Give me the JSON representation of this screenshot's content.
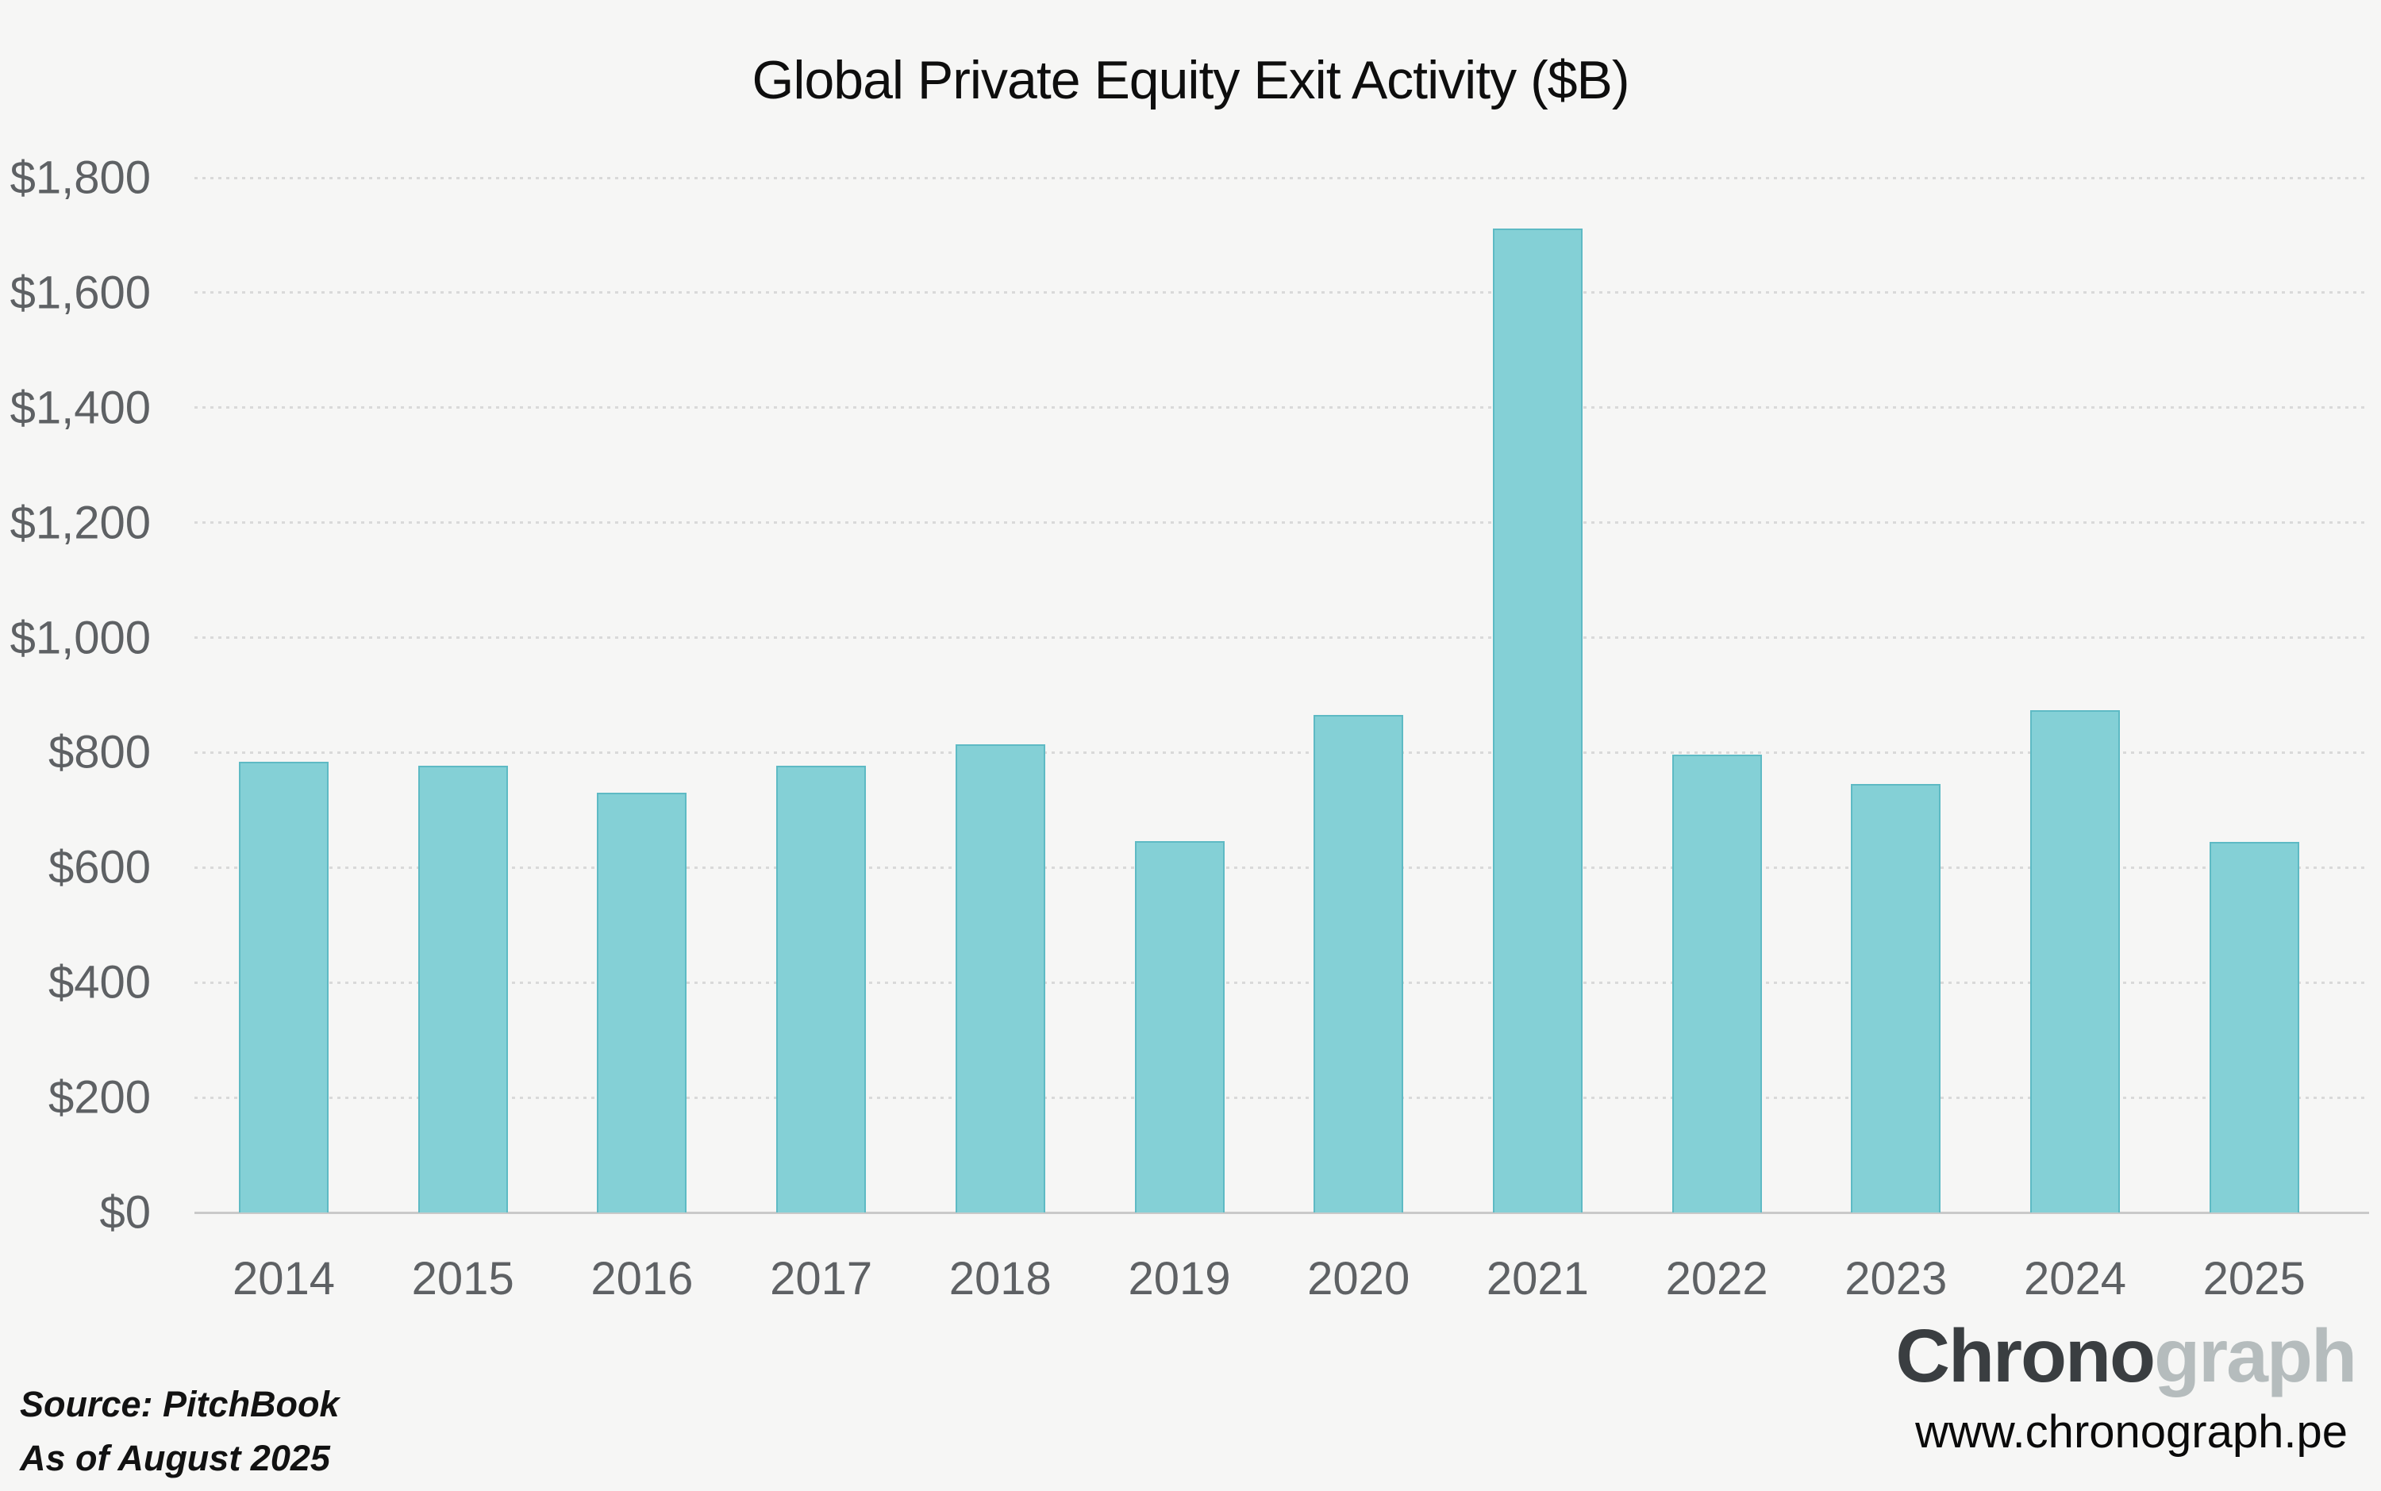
{
  "chart_data": {
    "type": "bar",
    "title": "Global Private Equity Exit Activity ($B)",
    "categories": [
      "2014",
      "2015",
      "2016",
      "2017",
      "2018",
      "2019",
      "2020",
      "2021",
      "2022",
      "2023",
      "2024",
      "2025"
    ],
    "values": [
      784,
      777,
      730,
      777,
      814,
      646,
      866,
      1712,
      797,
      746,
      874,
      645
    ],
    "xlabel": "",
    "ylabel": "",
    "ylim": [
      0,
      1800
    ],
    "ytick_step": 200,
    "ytick_labels": [
      "$0",
      "$200",
      "$400",
      "$600",
      "$800",
      "$1,000",
      "$1,200",
      "$1,400",
      "$1,600",
      "$1,800"
    ],
    "legend": "none",
    "grid": "horizontal-dotted",
    "bar_color": "#84d0d6",
    "bar_border_color": "#5ebac4",
    "background_color": "#f6f6f5",
    "gridline_color": "#d9d9d9",
    "axis_line_color": "#c9c9c9",
    "tick_label_color": "#5e6164",
    "title_color": "#0e0e0e"
  },
  "source": {
    "line1": "Source: PitchBook",
    "line2": "As of August 2025"
  },
  "branding": {
    "logo_dark": "Chrono",
    "logo_light": "graph",
    "url": "www.chronograph.pe"
  }
}
